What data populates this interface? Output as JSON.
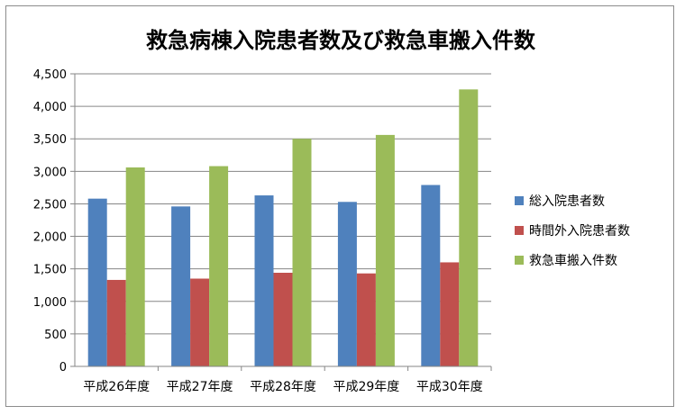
{
  "chart_data": {
    "type": "bar",
    "title": "救急病棟入院患者数及び救急車搬入件数",
    "categories": [
      "平成26年度",
      "平成27年度",
      "平成28年度",
      "平成29年度",
      "平成30年度"
    ],
    "series": [
      {
        "name": "総入院患者数",
        "color": "#4f81bd",
        "values": [
          2580,
          2460,
          2630,
          2530,
          2790
        ]
      },
      {
        "name": "時間外入院患者数",
        "color": "#c0504d",
        "values": [
          1330,
          1350,
          1440,
          1430,
          1600
        ]
      },
      {
        "name": "救急車搬入件数",
        "color": "#9bbb59",
        "values": [
          3060,
          3080,
          3500,
          3560,
          4260
        ]
      }
    ],
    "ylim": [
      0,
      4500
    ],
    "yticks": [
      "0",
      "500",
      "1,000",
      "1,500",
      "2,000",
      "2,500",
      "3,000",
      "3,500",
      "4,000",
      "4,500"
    ],
    "ytick_values": [
      0,
      500,
      1000,
      1500,
      2000,
      2500,
      3000,
      3500,
      4000,
      4500
    ],
    "legend": "right",
    "grid": true
  }
}
